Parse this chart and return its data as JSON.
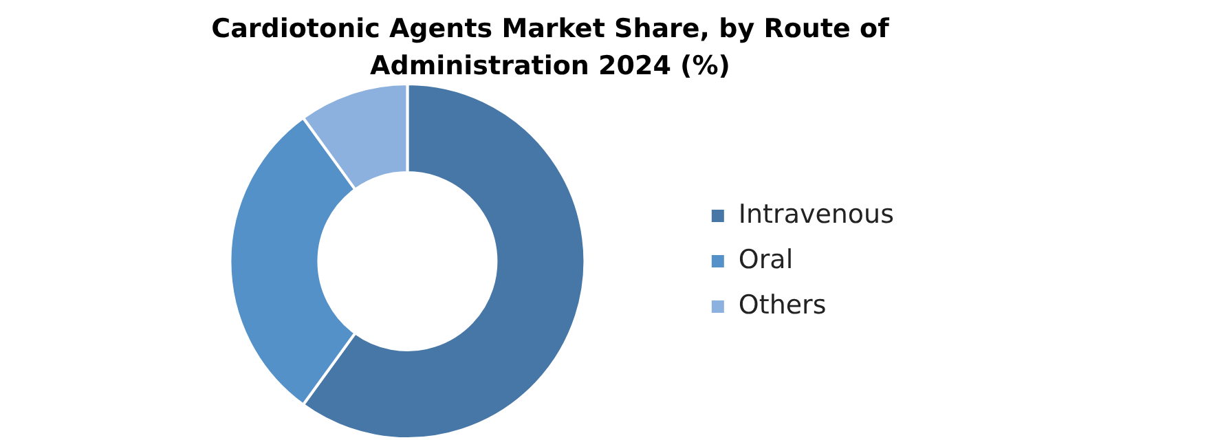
{
  "chart_data": {
    "type": "donut",
    "title": "Cardiotonic Agents Market Share, by Route of Administration 2024 (%)",
    "categories": [
      "Intravenous",
      "Oral",
      "Others"
    ],
    "values": [
      60,
      30,
      10
    ],
    "colors": [
      "#4677a7",
      "#5591c9",
      "#8cb1de"
    ],
    "legend": "right"
  }
}
